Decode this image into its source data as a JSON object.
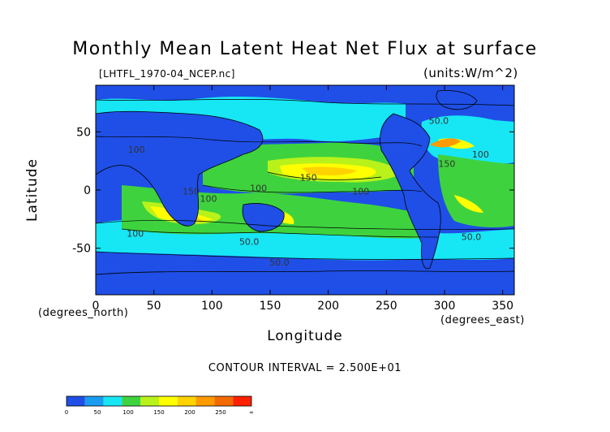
{
  "chart_data": {
    "type": "heatmap",
    "title": "Monthly Mean Latent Heat Net Flux at surface",
    "file_label": "[LHTFL_1970-04_NCEP.nc]",
    "units_label": "(units:W/m^2)",
    "xlabel": "Longitude",
    "ylabel": "Latitude",
    "x_unit_label": "(degrees_east)",
    "y_unit_label": "(degrees_north)",
    "xlim": [
      0,
      360
    ],
    "ylim": [
      -90,
      90
    ],
    "x_ticks": [
      0,
      50,
      100,
      150,
      200,
      250,
      300,
      350
    ],
    "y_ticks": [
      -50,
      0,
      50
    ],
    "contour_interval_text": "CONTOUR INTERVAL = 2.500E+01",
    "colorbar": {
      "levels": [
        "0",
        "50",
        "100",
        "150",
        "200",
        "250",
        "∞"
      ],
      "colors": [
        "#1f4fe6",
        "#1a9cf0",
        "#17e6f5",
        "#3ed33e",
        "#b8f21a",
        "#ffff00",
        "#ffd200",
        "#ff9a00",
        "#f26a00",
        "#ff2000"
      ]
    },
    "contour_labels": [
      {
        "text": "50.0",
        "lon": 295,
        "lat": 57
      },
      {
        "text": "100",
        "lon": 35,
        "lat": 32
      },
      {
        "text": "100",
        "lon": 331,
        "lat": 28
      },
      {
        "text": "150",
        "lon": 302,
        "lat": 20
      },
      {
        "text": "150",
        "lon": 183,
        "lat": 8
      },
      {
        "text": "100",
        "lon": 228,
        "lat": -4
      },
      {
        "text": "100",
        "lon": 140,
        "lat": -1
      },
      {
        "text": "150",
        "lon": 82,
        "lat": -4
      },
      {
        "text": "100",
        "lon": 97,
        "lat": -10
      },
      {
        "text": "100",
        "lon": 34,
        "lat": -40
      },
      {
        "text": "50.0",
        "lon": 132,
        "lat": -47
      },
      {
        "text": "50.0",
        "lon": 323,
        "lat": -43
      },
      {
        "text": "50.0",
        "lon": 158,
        "lat": -65
      }
    ]
  }
}
